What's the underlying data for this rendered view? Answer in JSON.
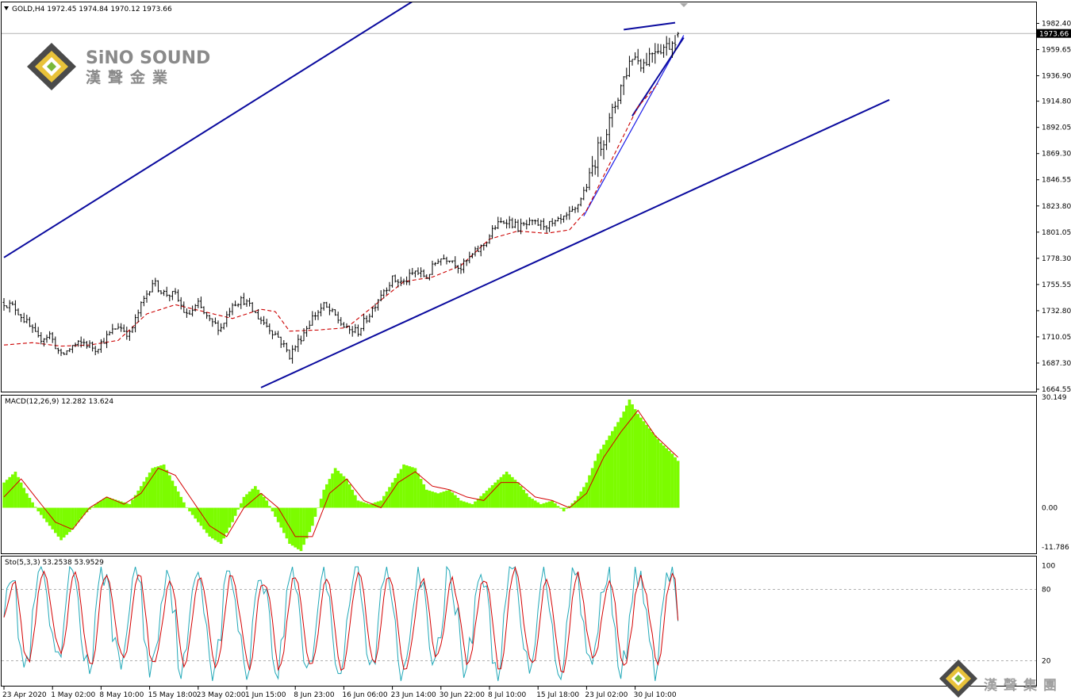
{
  "header": {
    "title": "GOLD,H4  1972.45 1974.84 1970.12 1973.66",
    "macd_label": "MACD(12,26,9) 12.282 13.624",
    "sto_label": "Sto(5,3,3) 53.2538 53.9529"
  },
  "logo": {
    "en": "SiNO SOUND",
    "cn": "漢聲金業"
  },
  "watermark": {
    "cn": "漢聲集團"
  },
  "colors": {
    "channel": "#0a0a9e",
    "trend": "#1c1ce8",
    "ma": "#cc0000",
    "macd_hist": "#7cfc00",
    "macd_signal": "#d40000",
    "sto_main": "#21a8b8",
    "sto_signal": "#d40000",
    "price_line": "#b4b4b4",
    "candle": "#000000"
  },
  "chart_data": [
    {
      "type": "candlestick",
      "symbol": "GOLD",
      "timeframe": "H4",
      "ohlc_last": {
        "open": 1972.45,
        "high": 1974.84,
        "low": 1970.12,
        "close": 1973.66
      },
      "current_price": "1973.66",
      "y_ticks": [
        "1982.40",
        "1959.65",
        "1936.90",
        "1914.80",
        "1892.05",
        "1869.30",
        "1846.55",
        "1823.80",
        "1801.05",
        "1778.30",
        "1755.55",
        "1732.80",
        "1710.05",
        "1687.30",
        "1664.55"
      ],
      "x_ticks": [
        "23 Apr 2020",
        "1 May 02:00",
        "8 May 10:00",
        "15 May 18:00",
        "23 May 02:00",
        "1 Jun 15:00",
        "8 Jun 23:00",
        "16 Jun 06:00",
        "23 Jun 14:00",
        "30 Jun 22:00",
        "8 Jul 10:00",
        "15 Jul 18:00",
        "23 Jul 02:00",
        "30 Jul 10:00"
      ],
      "close_path": [
        [
          0,
          1740
        ],
        [
          4,
          1735
        ],
        [
          8,
          1722
        ],
        [
          12,
          1708
        ],
        [
          16,
          1712
        ],
        [
          20,
          1693
        ],
        [
          24,
          1702
        ],
        [
          28,
          1705
        ],
        [
          32,
          1700
        ],
        [
          36,
          1710
        ],
        [
          40,
          1720
        ],
        [
          44,
          1712
        ],
        [
          48,
          1737
        ],
        [
          52,
          1758
        ],
        [
          56,
          1748
        ],
        [
          60,
          1746
        ],
        [
          64,
          1728
        ],
        [
          68,
          1738
        ],
        [
          72,
          1723
        ],
        [
          76,
          1718
        ],
        [
          80,
          1740
        ],
        [
          84,
          1742
        ],
        [
          88,
          1730
        ],
        [
          92,
          1720
        ],
        [
          96,
          1710
        ],
        [
          100,
          1694
        ],
        [
          104,
          1710
        ],
        [
          108,
          1727
        ],
        [
          112,
          1737
        ],
        [
          116,
          1728
        ],
        [
          120,
          1716
        ],
        [
          124,
          1715
        ],
        [
          128,
          1730
        ],
        [
          132,
          1748
        ],
        [
          136,
          1760
        ],
        [
          140,
          1757
        ],
        [
          144,
          1767
        ],
        [
          148,
          1762
        ],
        [
          152,
          1778
        ],
        [
          156,
          1779
        ],
        [
          160,
          1770
        ],
        [
          164,
          1781
        ],
        [
          168,
          1790
        ],
        [
          172,
          1806
        ],
        [
          176,
          1812
        ],
        [
          180,
          1805
        ],
        [
          184,
          1808
        ],
        [
          188,
          1808
        ],
        [
          192,
          1807
        ],
        [
          196,
          1812
        ],
        [
          200,
          1820
        ],
        [
          204,
          1842
        ],
        [
          208,
          1872
        ],
        [
          212,
          1896
        ],
        [
          216,
          1928
        ],
        [
          220,
          1955
        ],
        [
          224,
          1948
        ],
        [
          228,
          1962
        ],
        [
          232,
          1962
        ],
        [
          236,
          1973.66
        ]
      ],
      "ma_path": [
        [
          0,
          1703
        ],
        [
          10,
          1705
        ],
        [
          20,
          1702
        ],
        [
          30,
          1703
        ],
        [
          40,
          1707
        ],
        [
          50,
          1730
        ],
        [
          60,
          1738
        ],
        [
          70,
          1732
        ],
        [
          80,
          1726
        ],
        [
          90,
          1734
        ],
        [
          95,
          1732
        ],
        [
          100,
          1715
        ],
        [
          110,
          1716
        ],
        [
          120,
          1718
        ],
        [
          130,
          1738
        ],
        [
          140,
          1758
        ],
        [
          150,
          1762
        ],
        [
          160,
          1772
        ],
        [
          170,
          1795
        ],
        [
          180,
          1802
        ],
        [
          190,
          1800
        ],
        [
          198,
          1803
        ],
        [
          204,
          1820
        ],
        [
          210,
          1850
        ],
        [
          216,
          1880
        ],
        [
          222,
          1910
        ],
        [
          229,
          1930
        ]
      ],
      "channel_upper": [
        [
          0,
          1779
        ],
        [
          200,
          2090
        ]
      ],
      "channel_lower": [
        [
          90,
          1666
        ],
        [
          310,
          1916
        ]
      ],
      "trend_support": [
        [
          203,
          1815
        ],
        [
          238,
          1972
        ]
      ],
      "wedge_top": [
        [
          217,
          1977
        ],
        [
          235,
          1983
        ]
      ],
      "wedge_bottom": [
        [
          220,
          1902
        ],
        [
          238,
          1970
        ]
      ],
      "bars": 237
    },
    {
      "type": "bar",
      "name": "MACD(12,26,9)",
      "values_last": {
        "macd": 12.282,
        "signal": 13.624
      },
      "y_ticks": [
        "30.149",
        "0.00",
        "-11.786"
      ],
      "hist_path": [
        [
          0,
          7
        ],
        [
          4,
          10
        ],
        [
          8,
          4
        ],
        [
          12,
          -1
        ],
        [
          16,
          -5
        ],
        [
          20,
          -9
        ],
        [
          24,
          -6
        ],
        [
          28,
          -2
        ],
        [
          32,
          1
        ],
        [
          36,
          3
        ],
        [
          40,
          2
        ],
        [
          44,
          1
        ],
        [
          48,
          6
        ],
        [
          52,
          11
        ],
        [
          56,
          12
        ],
        [
          60,
          6
        ],
        [
          64,
          0
        ],
        [
          68,
          -4
        ],
        [
          72,
          -8
        ],
        [
          76,
          -10
        ],
        [
          80,
          -4
        ],
        [
          84,
          3
        ],
        [
          88,
          6
        ],
        [
          92,
          2
        ],
        [
          96,
          -4
        ],
        [
          100,
          -10
        ],
        [
          104,
          -12
        ],
        [
          108,
          -5
        ],
        [
          112,
          5
        ],
        [
          116,
          11
        ],
        [
          120,
          8
        ],
        [
          124,
          2
        ],
        [
          128,
          1
        ],
        [
          132,
          2
        ],
        [
          136,
          7
        ],
        [
          140,
          12
        ],
        [
          144,
          11
        ],
        [
          148,
          5
        ],
        [
          152,
          4
        ],
        [
          156,
          5
        ],
        [
          160,
          2
        ],
        [
          164,
          1
        ],
        [
          168,
          4
        ],
        [
          172,
          7
        ],
        [
          176,
          10
        ],
        [
          180,
          7
        ],
        [
          184,
          3
        ],
        [
          188,
          1
        ],
        [
          192,
          2
        ],
        [
          196,
          -1
        ],
        [
          200,
          2
        ],
        [
          204,
          7
        ],
        [
          208,
          15
        ],
        [
          212,
          20
        ],
        [
          216,
          25
        ],
        [
          219,
          30
        ],
        [
          222,
          26
        ],
        [
          226,
          22
        ],
        [
          230,
          18
        ],
        [
          234,
          15
        ],
        [
          236,
          13
        ]
      ],
      "signal_path": [
        [
          0,
          3
        ],
        [
          6,
          8
        ],
        [
          12,
          2
        ],
        [
          18,
          -4
        ],
        [
          24,
          -6
        ],
        [
          30,
          0
        ],
        [
          36,
          3
        ],
        [
          42,
          1
        ],
        [
          48,
          4
        ],
        [
          54,
          11
        ],
        [
          60,
          9
        ],
        [
          66,
          2
        ],
        [
          72,
          -5
        ],
        [
          78,
          -8
        ],
        [
          84,
          0
        ],
        [
          90,
          4
        ],
        [
          96,
          0
        ],
        [
          102,
          -8
        ],
        [
          108,
          -8
        ],
        [
          114,
          4
        ],
        [
          120,
          8
        ],
        [
          126,
          2
        ],
        [
          132,
          0
        ],
        [
          138,
          7
        ],
        [
          144,
          10
        ],
        [
          150,
          6
        ],
        [
          156,
          5
        ],
        [
          162,
          3
        ],
        [
          168,
          2
        ],
        [
          174,
          7
        ],
        [
          180,
          7
        ],
        [
          186,
          3
        ],
        [
          192,
          2
        ],
        [
          198,
          0
        ],
        [
          204,
          4
        ],
        [
          210,
          14
        ],
        [
          216,
          21
        ],
        [
          222,
          27
        ],
        [
          228,
          20
        ],
        [
          236,
          14
        ]
      ]
    },
    {
      "type": "line",
      "name": "Sto(5,3,3)",
      "values_last": {
        "main": 53.2538,
        "signal": 53.9529
      },
      "y_ticks": [
        "100",
        "80",
        "20"
      ],
      "levels": [
        80,
        20
      ],
      "bars": 237,
      "period": 11,
      "phase": 0.4
    }
  ]
}
